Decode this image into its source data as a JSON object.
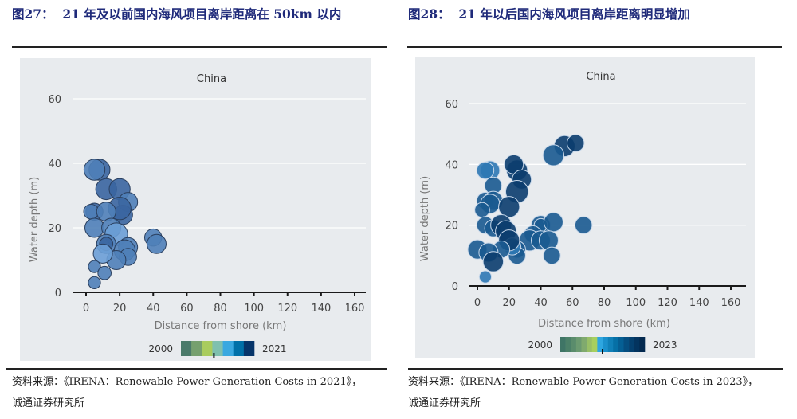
{
  "figures": [
    {
      "number_label": "图27：",
      "title": "21 年及以前国内海风项目离岸距离在 50km 以内",
      "source_line1": "资料来源：《IRENA：Renewable Power Generation Costs in 2021》，",
      "source_line2": "诚通证券研究所"
    },
    {
      "number_label": "图28：",
      "title": "21 年以后国内海风项目离岸距离明显增加",
      "source_line1": "资料来源：《IRENA：Renewable Power Generation Costs in 2023》，",
      "source_line2": "诚通证券研究所"
    }
  ],
  "colors": {
    "panel_bg": "#e8ebee",
    "gridline": "#ffffff",
    "axis": "#1a1a1a",
    "tick_label": "#444444",
    "axis_label": "#777777",
    "bubble_left": "#4f7fb8",
    "bubble_left_dark": "#3a65a0",
    "bubble_left_light": "#6c9fd6",
    "bubble_right": "#0b3d6e",
    "bubble_right_mid": "#1a5a90",
    "bubble_right_light": "#2e78b4"
  },
  "chart_data": [
    {
      "type": "scatter",
      "subtype": "bubble",
      "title": "China",
      "xlabel": "Distance from shore (km)",
      "ylabel": "Water depth (m)",
      "xlim": [
        -10,
        170
      ],
      "ylim": [
        0,
        62
      ],
      "xticks": [
        0,
        20,
        40,
        60,
        80,
        100,
        120,
        140,
        160
      ],
      "yticks": [
        0,
        20,
        40,
        60
      ],
      "grid": "horizontal",
      "colorbar": {
        "start_label": "2000",
        "end_label": "2021",
        "colors": [
          "#4a7a6a",
          "#76a06e",
          "#a9cc5e",
          "#7fc0ae",
          "#3aa8e0",
          "#0070a8",
          "#06356a"
        ],
        "marker_fraction": 0.45
      },
      "points": [
        {
          "x": 8,
          "y": 38,
          "size": 3,
          "shade": "dark"
        },
        {
          "x": 5,
          "y": 38,
          "size": 3,
          "shade": "base"
        },
        {
          "x": 12,
          "y": 32,
          "size": 3,
          "shade": "dark"
        },
        {
          "x": 20,
          "y": 32,
          "size": 3,
          "shade": "dark"
        },
        {
          "x": 25,
          "y": 28,
          "size": 2.5,
          "shade": "base"
        },
        {
          "x": 22,
          "y": 24,
          "size": 2.5,
          "shade": "dark"
        },
        {
          "x": 20,
          "y": 26,
          "size": 3.5,
          "shade": "dark"
        },
        {
          "x": 5,
          "y": 25,
          "size": 2,
          "shade": "dark"
        },
        {
          "x": 3,
          "y": 25,
          "size": 1.5,
          "shade": "base"
        },
        {
          "x": 12,
          "y": 25,
          "size": 2.5,
          "shade": "base"
        },
        {
          "x": 5,
          "y": 20,
          "size": 2.5,
          "shade": "base"
        },
        {
          "x": 15,
          "y": 20,
          "size": 2.5,
          "shade": "base"
        },
        {
          "x": 18,
          "y": 18,
          "size": 3.5,
          "shade": "light"
        },
        {
          "x": 12,
          "y": 15,
          "size": 2.5,
          "shade": "base"
        },
        {
          "x": 12,
          "y": 15,
          "size": 1.2,
          "shade": "dark"
        },
        {
          "x": 25,
          "y": 14,
          "size": 2.5,
          "shade": "base"
        },
        {
          "x": 23,
          "y": 13,
          "size": 3,
          "shade": "base"
        },
        {
          "x": 25,
          "y": 11,
          "size": 2,
          "shade": "base"
        },
        {
          "x": 18,
          "y": 10,
          "size": 2.5,
          "shade": "base"
        },
        {
          "x": 10,
          "y": 12,
          "size": 2.5,
          "shade": "light"
        },
        {
          "x": 40,
          "y": 17,
          "size": 2,
          "shade": "base"
        },
        {
          "x": 42,
          "y": 15,
          "size": 2.5,
          "shade": "base"
        },
        {
          "x": 5,
          "y": 8,
          "size": 1,
          "shade": "base"
        },
        {
          "x": 11,
          "y": 6,
          "size": 1.2,
          "shade": "base"
        },
        {
          "x": 5,
          "y": 3,
          "size": 1,
          "shade": "base"
        }
      ]
    },
    {
      "type": "scatter",
      "subtype": "bubble",
      "title": "China",
      "xlabel": "Distance from shore (km)",
      "ylabel": "Water depth (m)",
      "xlim": [
        -10,
        170
      ],
      "ylim": [
        0,
        62
      ],
      "xticks": [
        0,
        20,
        40,
        60,
        80,
        100,
        120,
        140,
        160
      ],
      "yticks": [
        0,
        20,
        40,
        60
      ],
      "grid": "horizontal",
      "colorbar": {
        "start_label": "2000",
        "end_label": "2023",
        "colors": [
          "#3f7566",
          "#4b8068",
          "#5a8c6c",
          "#6b9a70",
          "#80aa6e",
          "#98bf66",
          "#a7cf5e",
          "#2ea6e0",
          "#1a90cc",
          "#1080b8",
          "#0670a6",
          "#055f94",
          "#054e80",
          "#04406f",
          "#03345f",
          "#03294f"
        ],
        "marker_fraction": 0.5
      },
      "points": [
        {
          "x": 55,
          "y": 46,
          "size": 3,
          "shade": "dark"
        },
        {
          "x": 62,
          "y": 47,
          "size": 2,
          "shade": "dark"
        },
        {
          "x": 48,
          "y": 43,
          "size": 3,
          "shade": "mid"
        },
        {
          "x": 8,
          "y": 38,
          "size": 2.5,
          "shade": "light"
        },
        {
          "x": 5,
          "y": 38,
          "size": 2,
          "shade": "light"
        },
        {
          "x": 25,
          "y": 38,
          "size": 3,
          "shade": "dark"
        },
        {
          "x": 23,
          "y": 40,
          "size": 2.5,
          "shade": "dark"
        },
        {
          "x": 28,
          "y": 35,
          "size": 2.5,
          "shade": "dark"
        },
        {
          "x": 10,
          "y": 33,
          "size": 2,
          "shade": "mid"
        },
        {
          "x": 25,
          "y": 31,
          "size": 3.5,
          "shade": "dark"
        },
        {
          "x": 5,
          "y": 28,
          "size": 2,
          "shade": "mid"
        },
        {
          "x": 10,
          "y": 28,
          "size": 2.5,
          "shade": "mid"
        },
        {
          "x": 8,
          "y": 27,
          "size": 2.5,
          "shade": "mid"
        },
        {
          "x": 3,
          "y": 25,
          "size": 1.5,
          "shade": "mid"
        },
        {
          "x": 20,
          "y": 26,
          "size": 3,
          "shade": "dark"
        },
        {
          "x": 5,
          "y": 20,
          "size": 2,
          "shade": "mid"
        },
        {
          "x": 10,
          "y": 19,
          "size": 2,
          "shade": "mid"
        },
        {
          "x": 15,
          "y": 20,
          "size": 3,
          "shade": "dark"
        },
        {
          "x": 18,
          "y": 18,
          "size": 3,
          "shade": "dark"
        },
        {
          "x": 40,
          "y": 20,
          "size": 2.5,
          "shade": "mid"
        },
        {
          "x": 40,
          "y": 20,
          "size": 1.2,
          "shade": "mid"
        },
        {
          "x": 48,
          "y": 21,
          "size": 2.5,
          "shade": "mid"
        },
        {
          "x": 67,
          "y": 20,
          "size": 2,
          "shade": "mid"
        },
        {
          "x": 35,
          "y": 17,
          "size": 2,
          "shade": "mid"
        },
        {
          "x": 33,
          "y": 15,
          "size": 3,
          "shade": "mid"
        },
        {
          "x": 40,
          "y": 15,
          "size": 2.5,
          "shade": "mid"
        },
        {
          "x": 45,
          "y": 15,
          "size": 2.5,
          "shade": "mid"
        },
        {
          "x": 47,
          "y": 10,
          "size": 2,
          "shade": "mid"
        },
        {
          "x": 25,
          "y": 12,
          "size": 2,
          "shade": "mid"
        },
        {
          "x": 25,
          "y": 10,
          "size": 2,
          "shade": "mid"
        },
        {
          "x": 22,
          "y": 13,
          "size": 2,
          "shade": "light"
        },
        {
          "x": 20,
          "y": 15,
          "size": 3,
          "shade": "dark"
        },
        {
          "x": 15,
          "y": 12,
          "size": 2,
          "shade": "mid"
        },
        {
          "x": 0,
          "y": 12,
          "size": 2.5,
          "shade": "mid"
        },
        {
          "x": 7,
          "y": 11,
          "size": 2.5,
          "shade": "mid"
        },
        {
          "x": 10,
          "y": 8,
          "size": 2.8,
          "shade": "dark"
        },
        {
          "x": 5,
          "y": 3,
          "size": 1,
          "shade": "light"
        }
      ]
    }
  ]
}
